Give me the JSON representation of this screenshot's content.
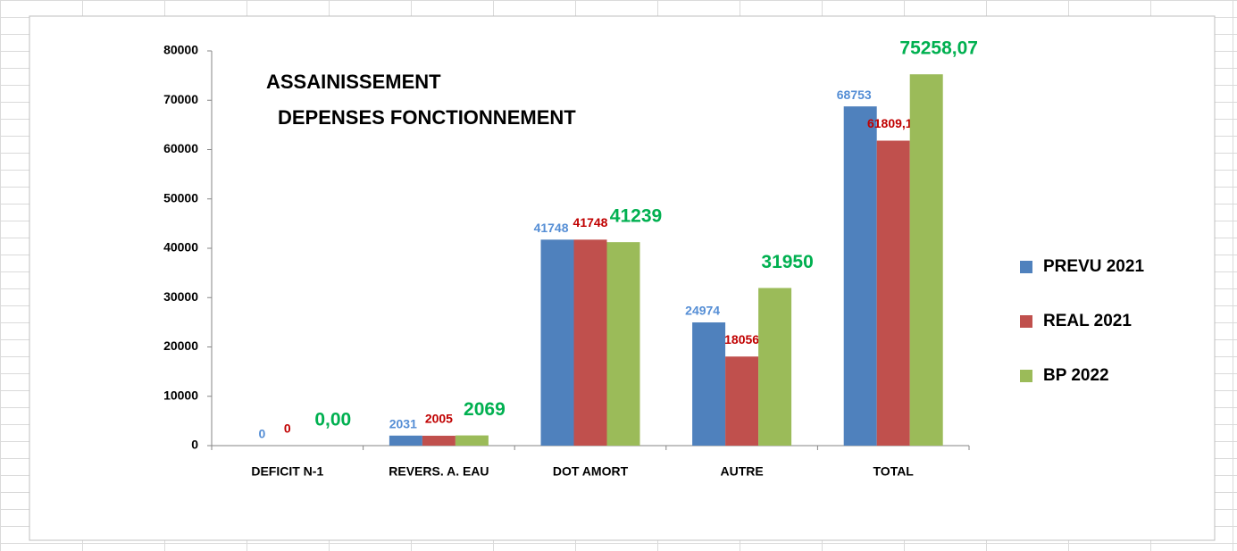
{
  "chart_data": {
    "type": "bar",
    "title": "ASSAINISSEMENT",
    "subtitle": "DEPENSES FONCTIONNEMENT",
    "categories": [
      "DEFICIT N-1",
      "REVERS. A. EAU",
      "DOT AMORT",
      "AUTRE",
      "TOTAL"
    ],
    "series": [
      {
        "name": "PREVU 2021",
        "color": "#4f81bd",
        "label_color": "#558ed5",
        "values": [
          0,
          2031,
          41748,
          24974,
          68753
        ]
      },
      {
        "name": "REAL 2021",
        "color": "#c0504d",
        "label_color": "#c00000",
        "values": [
          0,
          2005,
          41748,
          18056,
          61809.18
        ],
        "value_labels": [
          "0",
          "2005",
          "41748",
          "18056",
          "61809,18"
        ]
      },
      {
        "name": "BP 2022",
        "color": "#9bbb59",
        "label_color": "#00b050",
        "values": [
          0,
          2069,
          41239,
          31950,
          75258.07
        ],
        "value_labels": [
          "0,00",
          "2069",
          "41239",
          "31950",
          "75258,07"
        ]
      }
    ],
    "ylim": [
      0,
      80000
    ],
    "yticks": [
      0,
      10000,
      20000,
      30000,
      40000,
      50000,
      60000,
      70000,
      80000
    ],
    "grid": false,
    "legend": "right"
  }
}
